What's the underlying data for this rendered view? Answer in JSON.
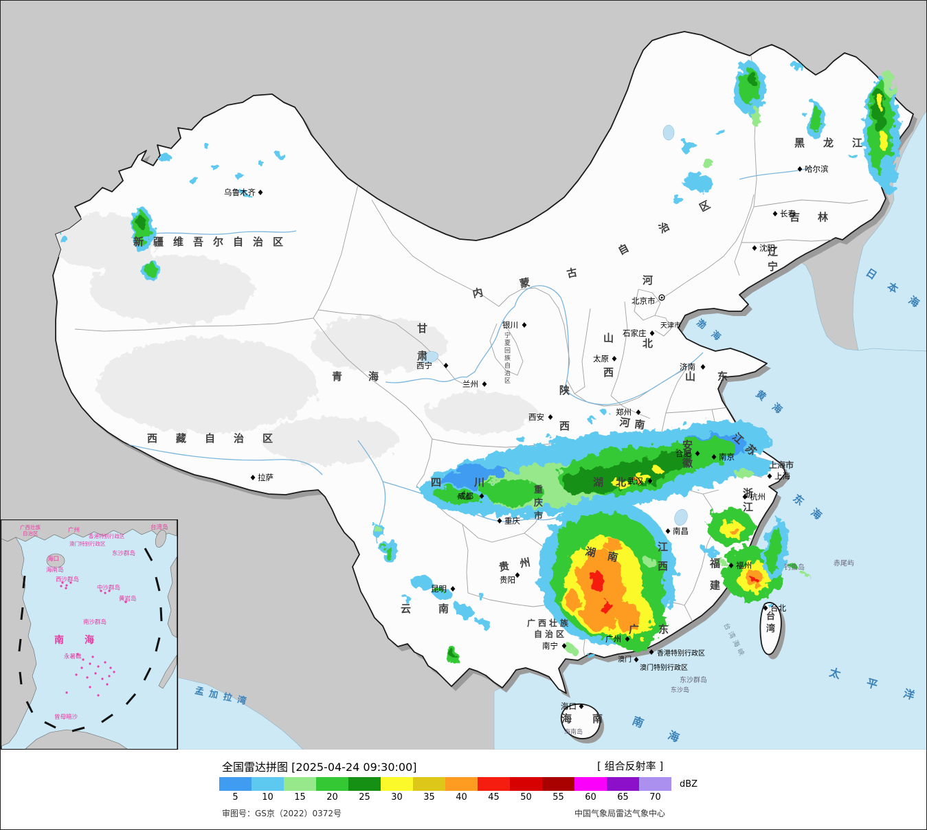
{
  "colors": {
    "outside_land": "#c9c9c9",
    "china_fill": "#fcfcfc",
    "shadow": "#9b9b9b",
    "sea": "#cde9f5",
    "national_border": "#1a1a1a",
    "province_line": "#a0a0a0",
    "river": "#7ab5dd",
    "sea_label": "#3b82b8",
    "inset_label": "#e63aa0"
  },
  "legend": {
    "title": "全国雷达拼图 [2025-04-24 09:30:00]",
    "product": "[ 组合反射率 ]",
    "unit": "dBZ",
    "approval": "审图号：GS京（2022）0372号",
    "agency": "中国气象局雷达气象中心",
    "scale": [
      {
        "v": "5",
        "c": "#3f9cf0"
      },
      {
        "v": "10",
        "c": "#5ec9f0"
      },
      {
        "v": "15",
        "c": "#97e88b"
      },
      {
        "v": "20",
        "c": "#34c934"
      },
      {
        "v": "25",
        "c": "#159015"
      },
      {
        "v": "30",
        "c": "#fbf929"
      },
      {
        "v": "35",
        "c": "#ddc718"
      },
      {
        "v": "40",
        "c": "#fe9c21"
      },
      {
        "v": "45",
        "c": "#f51d10"
      },
      {
        "v": "50",
        "c": "#d80102"
      },
      {
        "v": "55",
        "c": "#a90000"
      },
      {
        "v": "60",
        "c": "#fb00fb"
      },
      {
        "v": "65",
        "c": "#8c10c9"
      },
      {
        "v": "70",
        "c": "#ac90f0"
      }
    ]
  },
  "labels": {
    "provinces": {
      "heilongjiang": "黑龙江",
      "jilin": "吉林",
      "liaoning": "辽宁",
      "neimenggu_a": "内蒙古",
      "neimenggu_b": "自治区",
      "xinjiang": "新疆维吾尔自治区",
      "xizang": "西藏自治区",
      "qinghai": "青海",
      "gansu": "甘肃",
      "ningxia": "宁夏回族自治区",
      "shaanxi": "陕西",
      "shanxi": "山西",
      "hebei": "河北",
      "shandong": "山东",
      "henan": "河南",
      "jiangsu": "江苏",
      "anhui": "安徽",
      "shanghai": "上海市",
      "hubei": "湖北",
      "sichuan": "四川",
      "chongqing": "重庆市",
      "guizhou": "贵州",
      "yunnan": "云南",
      "hunan": "湖南",
      "jiangxi": "江西",
      "zhejiang": "浙江",
      "fujian": "福建",
      "guangxi_a": "广西壮族",
      "guangxi_b": "自治区",
      "guangdong": "广东",
      "hainan": "海南",
      "taiwan": "台湾",
      "beijing": "北京市",
      "tianjin": "天津市"
    },
    "cities": {
      "wulumuqi": "乌鲁木齐",
      "haerbin": "哈尔滨",
      "changchun": "长春",
      "shenyang": "沈阳",
      "shijiazhuang": "石家庄",
      "taiyuan": "太原",
      "jinan": "济南",
      "zhengzhou": "郑州",
      "xian": "西安",
      "yinchuan": "银川",
      "xining": "西宁",
      "lanzhou": "兰州",
      "lasa": "拉萨",
      "chengdu": "成都",
      "chongqing": "重庆",
      "guiyang": "贵阳",
      "kunming": "昆明",
      "nanning": "南宁",
      "guangzhou": "广州",
      "haikou": "海口",
      "wuhan": "武汉",
      "hefei": "合肥",
      "nanjing": "南京",
      "shanghai": "上海",
      "hangzhou": "杭州",
      "nanchang": "南昌",
      "fuzhou": "福州",
      "taibei": "台北",
      "xianggang": "香港特别行政区",
      "aomen": "澳门",
      "aomen_full": "澳门特别行政区"
    },
    "seas": {
      "bohai": "渤海",
      "huanghai": "黄海",
      "donghai": "东海",
      "nanhai": "南海",
      "ribenhai": "日本海",
      "taipingyang": "太平洋",
      "mengjialawan": "孟加拉湾",
      "taiwanhaixia": "台湾海峡"
    },
    "islands": {
      "diaoyudao": "钓鱼岛",
      "chiweiyu": "赤尾屿",
      "dongsha": "东沙群岛",
      "dongshadao": "东沙岛",
      "hainandao": "海南岛"
    },
    "inset": {
      "nanhai": "南海",
      "xisha": "西沙群岛",
      "zhongsha": "中沙群岛",
      "nansha": "南沙群岛",
      "huangyan": "黄岩岛",
      "yongshu": "永暑礁",
      "zengmu": "曾母暗沙",
      "guangzhou": "广州",
      "haikou": "海口",
      "hainandao": "海南岛",
      "taiwandao": "台湾岛",
      "dongsha": "东沙群岛",
      "guangxi_a": "广西壮族",
      "guangxi_b": "自治区",
      "xianggang": "香港特别行政区",
      "aomen": "澳门特别行政区"
    }
  }
}
